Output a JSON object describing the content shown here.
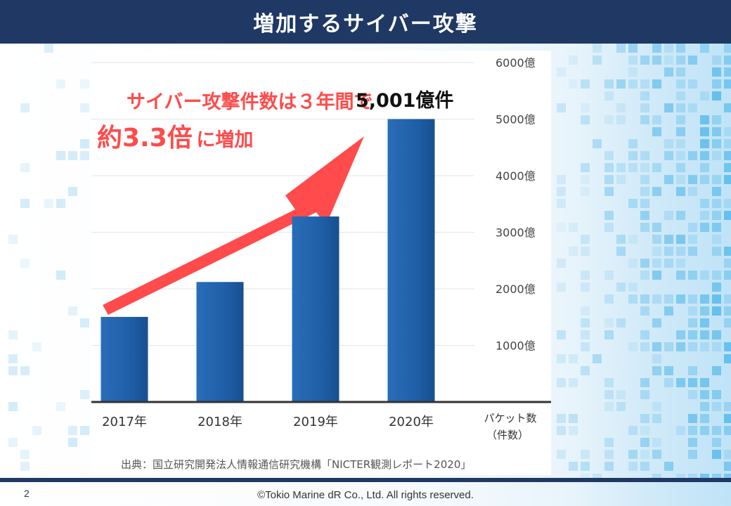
{
  "slide": {
    "title": "増加するサイバー攻撃",
    "page_number": "2",
    "copyright": "©Tokio Marine dR Co., Ltd. All rights reserved."
  },
  "annotation": {
    "headline_line1": "サイバー攻撃件数は３年間で",
    "headline_line2_big": "約3.3倍",
    "headline_line2_small": "に増加",
    "top_value_label": "5,001億件",
    "color": "#ff4b4b"
  },
  "source_note": "出典：国立研究開発法人情報通信研究機構「NICTER観測レポート2020」",
  "chart_data": {
    "type": "bar",
    "title": "",
    "categories": [
      "2017年",
      "2018年",
      "2019年",
      "2020年"
    ],
    "values": [
      1504,
      2121,
      3279,
      5001
    ],
    "unit": "億",
    "ylim": [
      0,
      6000
    ],
    "yticks": [
      {
        "value": 1000,
        "label": "1000億"
      },
      {
        "value": 2000,
        "label": "2000億"
      },
      {
        "value": 3000,
        "label": "3000億"
      },
      {
        "value": 4000,
        "label": "4000億"
      },
      {
        "value": 5000,
        "label": "5000億"
      },
      {
        "value": 6000,
        "label": "6000億"
      }
    ],
    "y_axis_position": "right",
    "axis_unit_label_line1": "パケット数",
    "axis_unit_label_line2": "（件数）",
    "grid": true,
    "legend": "none",
    "bar_color": "#1f5fa8",
    "bar_color_dark": "#174c8c"
  }
}
